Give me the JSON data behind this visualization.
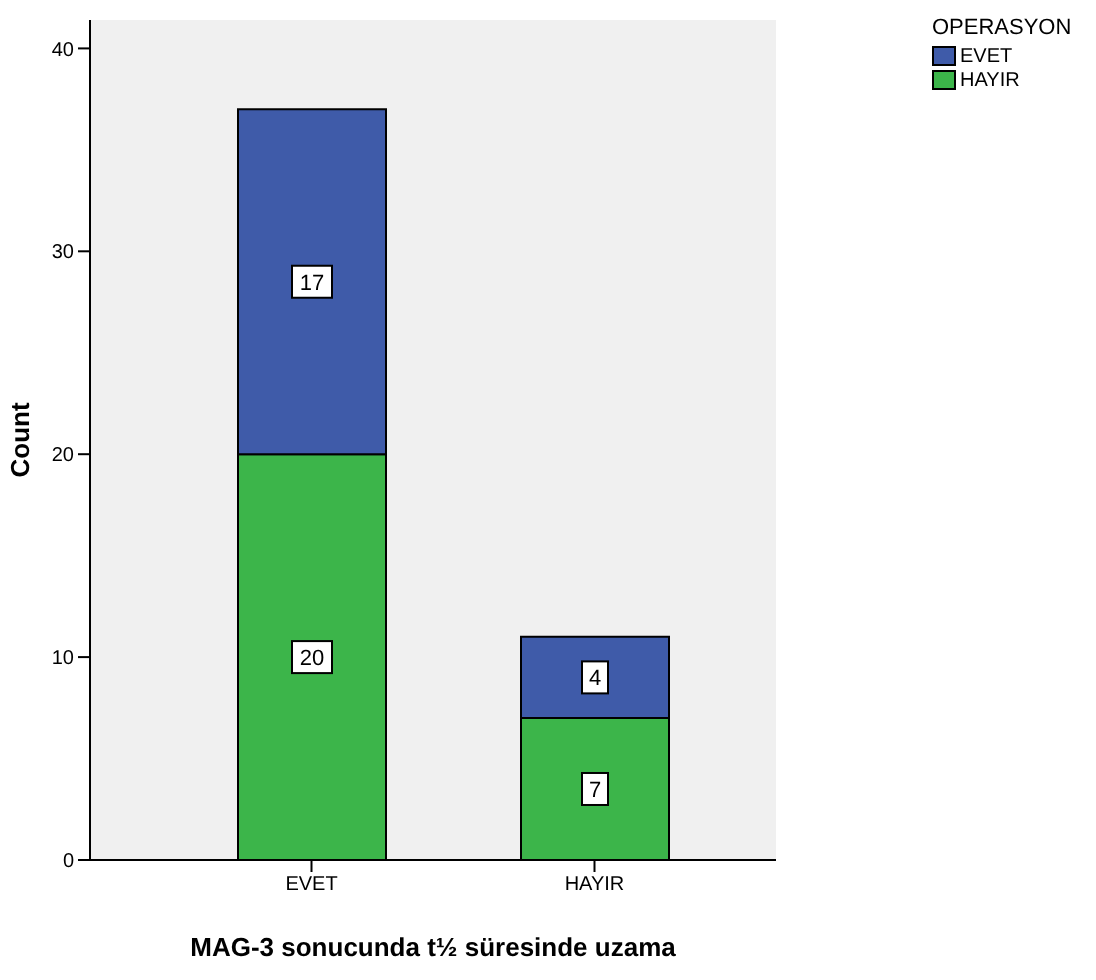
{
  "chart_data": {
    "type": "bar",
    "xlabel": "MAG-3 sonucunda t½ süresinde uzama",
    "ylabel": "Count",
    "legend_title": "OPERASYON",
    "categories": [
      "EVET",
      "HAYIR"
    ],
    "stacked": true,
    "series": [
      {
        "name": "HAYIR",
        "color": "#3cb54a",
        "values": [
          20,
          7
        ]
      },
      {
        "name": "EVET",
        "color": "#3f5ba9",
        "values": [
          17,
          4
        ]
      }
    ],
    "ylim": [
      0,
      41.4
    ],
    "yticks": [
      0,
      10,
      20,
      30,
      40
    ],
    "data_labels": true,
    "legend": "top right",
    "grid": false
  }
}
